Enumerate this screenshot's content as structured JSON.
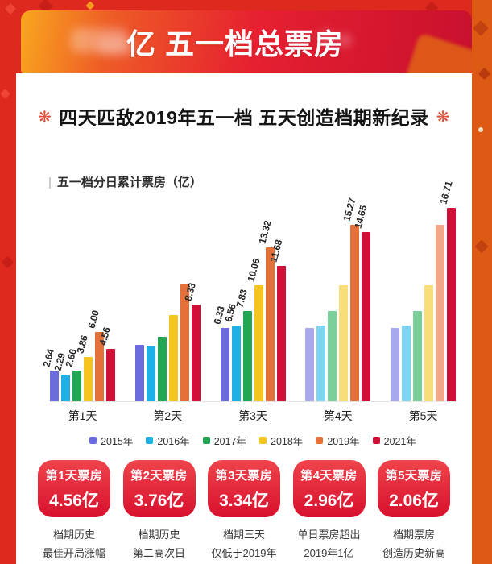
{
  "banner": {
    "visible_text": "亿 五一档总票房"
  },
  "headline": {
    "icon": "❋",
    "text": "四天匹敌2019年五一档 五天创造档期新纪录"
  },
  "chart": {
    "title_prefix": "|",
    "title": "五一档分日累计票房（亿）"
  },
  "chart_data": {
    "type": "bar",
    "title": "五一档分日累计票房（亿）",
    "categories": [
      "第1天",
      "第2天",
      "第3天",
      "第4天",
      "第5天"
    ],
    "ylim": [
      0,
      17
    ],
    "grid": false,
    "legend_position": "bottom",
    "series": [
      {
        "name": "2015年",
        "color": "#6B6BDE",
        "faded_color": "#A8A8EC",
        "values": [
          2.64,
          4.85,
          6.33,
          6.33,
          6.33
        ],
        "labels": [
          "2.64",
          null,
          "6.33",
          null,
          null
        ],
        "faded": [
          false,
          false,
          false,
          true,
          true
        ]
      },
      {
        "name": "2016年",
        "color": "#1FB1E6",
        "faded_color": "#7FD4F2",
        "values": [
          2.29,
          4.8,
          6.56,
          6.56,
          6.56
        ],
        "labels": [
          "2.29",
          null,
          "6.56",
          null,
          null
        ],
        "faded": [
          false,
          false,
          false,
          true,
          true
        ]
      },
      {
        "name": "2017年",
        "color": "#21A653",
        "faded_color": "#7BCF99",
        "values": [
          2.66,
          5.6,
          7.83,
          7.83,
          7.83
        ],
        "labels": [
          "2.66",
          null,
          "7.83",
          null,
          null
        ],
        "faded": [
          false,
          false,
          false,
          true,
          true
        ]
      },
      {
        "name": "2018年",
        "color": "#F5C41E",
        "faded_color": "#F8DE79",
        "values": [
          3.86,
          7.45,
          10.06,
          10.06,
          10.06
        ],
        "labels": [
          "3.86",
          null,
          "10.06",
          null,
          null
        ],
        "faded": [
          false,
          false,
          false,
          true,
          true
        ]
      },
      {
        "name": "2019年",
        "color": "#E4703A",
        "faded_color": "#F2A888",
        "values": [
          6.0,
          10.2,
          13.32,
          15.27,
          15.27
        ],
        "labels": [
          "6.00",
          null,
          "13.32",
          "15.27",
          null
        ],
        "faded": [
          false,
          false,
          false,
          false,
          true
        ]
      },
      {
        "name": "2021年",
        "color": "#D01038",
        "faded_color": "#E27A92",
        "values": [
          4.56,
          8.33,
          11.68,
          14.65,
          16.71
        ],
        "labels": [
          "4.56",
          "8.33",
          "11.68",
          "14.65",
          "16.71"
        ],
        "faded": [
          false,
          false,
          false,
          false,
          false
        ]
      }
    ]
  },
  "badges": [
    {
      "title": "第1天票房",
      "value": "4.56亿",
      "note_line1": "档期历史",
      "note_line2": "最佳开局涨幅"
    },
    {
      "title": "第2天票房",
      "value": "3.76亿",
      "note_line1": "档期历史",
      "note_line2": "第二高次日"
    },
    {
      "title": "第3天票房",
      "value": "3.34亿",
      "note_line1": "档期三天",
      "note_line2": "仅低于2019年"
    },
    {
      "title": "第4天票房",
      "value": "2.96亿",
      "note_line1": "单日票房超出",
      "note_line2": "2019年1亿"
    },
    {
      "title": "第5天票房",
      "value": "2.06亿",
      "note_line1": "档期票房",
      "note_line2": "创造历史新高"
    }
  ],
  "colors": {
    "page_bg": "#DE2A1E",
    "right_strip": "#DC5A14",
    "banner_gradient_start": "#F9A71E",
    "banner_gradient_end": "#C8102E",
    "badge_red": "#D8102E",
    "headline_asterisk": "#E05038"
  }
}
